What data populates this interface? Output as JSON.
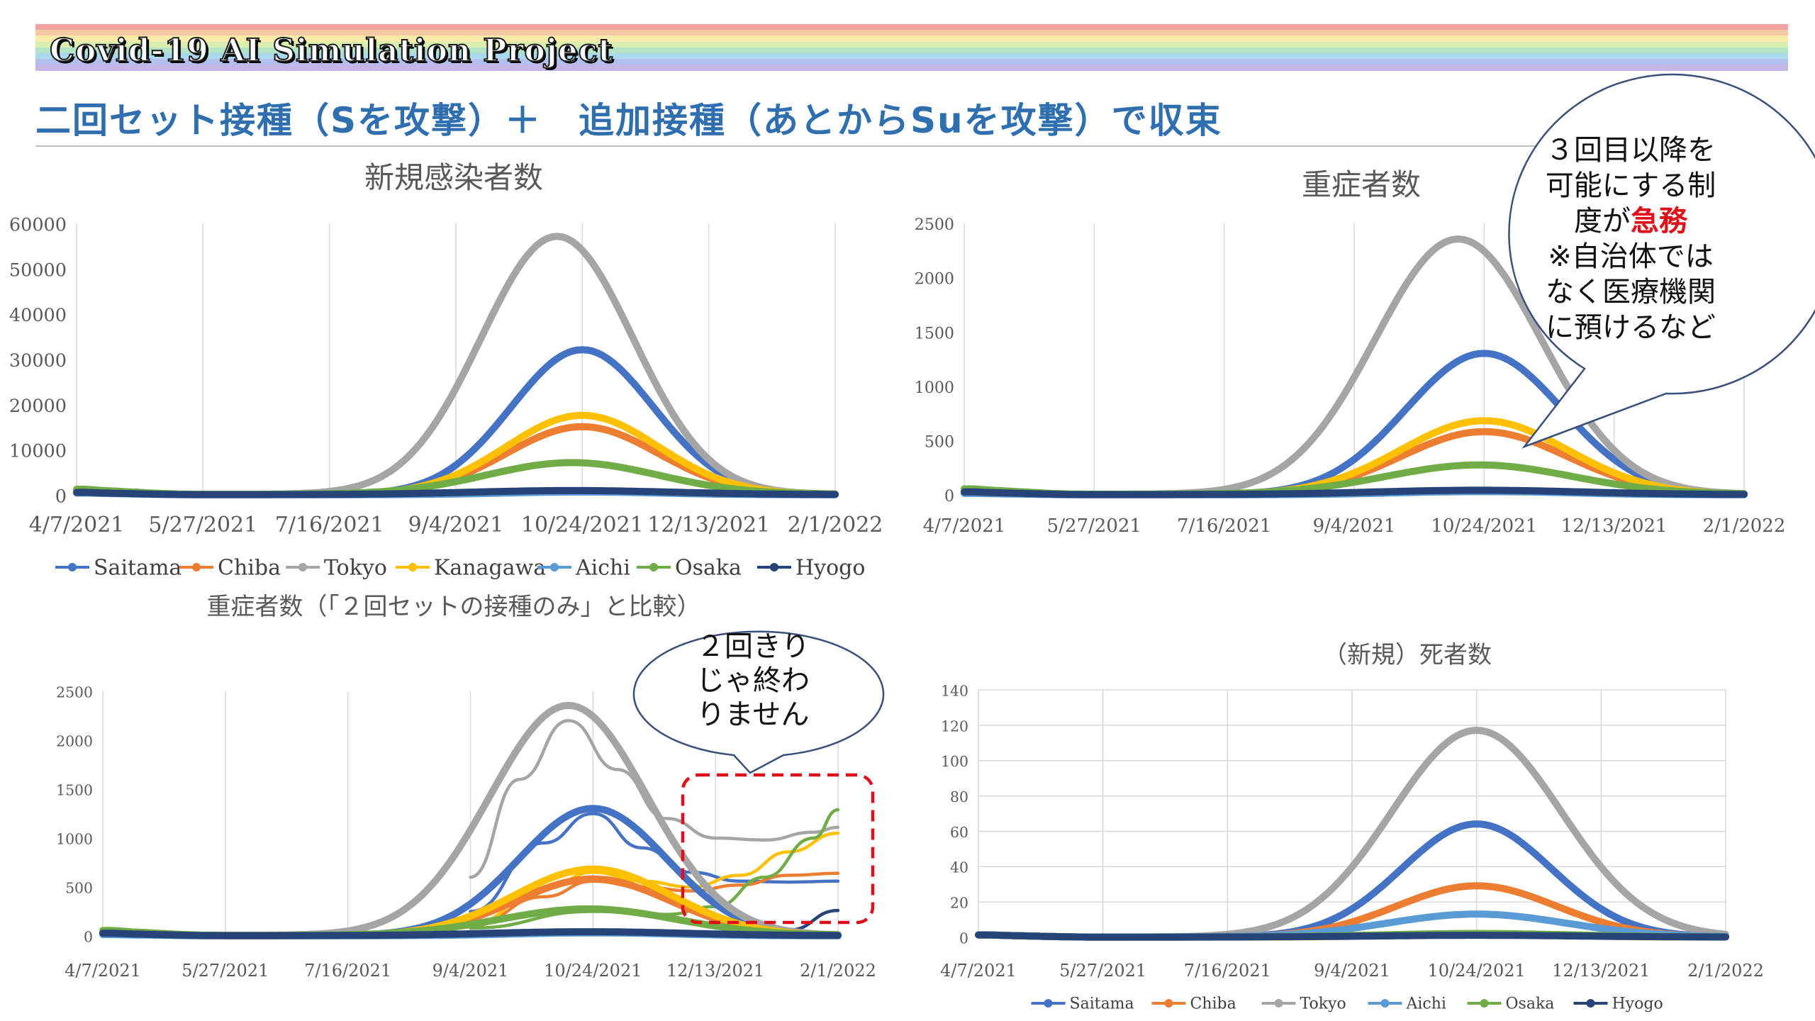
{
  "banner": {
    "title": "Covid-19 AI Simulation Project",
    "stripes": [
      "#f4a3a3",
      "#f6c9a6",
      "#f8eaa9",
      "#d9efb0",
      "#b5e3c7",
      "#a9d8ef",
      "#b3bfec",
      "#c4b6e6"
    ]
  },
  "subtitle": {
    "text": "二回セット接種（Sを攻撃）＋　追加接種（あとからSuを攻撃）で収束",
    "color": "#2f6fb0"
  },
  "colors": {
    "Saitama": "#4472c4",
    "Chiba": "#ed7d31",
    "Tokyo": "#a5a5a5",
    "Kanagawa": "#ffc000",
    "Aichi": "#5b9bd5",
    "Osaka": "#70ad47",
    "Hyogo": "#264478"
  },
  "callouts": {
    "booster": {
      "lines": [
        [
          {
            "text": "３回目以降を"
          }
        ],
        [
          {
            "text": "可能にする制"
          }
        ],
        [
          {
            "text": "度が"
          },
          {
            "text": "急務",
            "color": "#e0101a",
            "bold": true
          }
        ],
        [
          {
            "text": "※自治体では"
          }
        ],
        [
          {
            "text": "なく医療機関"
          }
        ],
        [
          {
            "text": "に預けるなど"
          }
        ]
      ]
    },
    "not_over": {
      "lines": [
        [
          {
            "text": "２回きり"
          }
        ],
        [
          {
            "text": "じゃ終わ"
          }
        ],
        [
          {
            "text": "りません"
          }
        ]
      ]
    }
  },
  "chart_data": [
    {
      "id": "infections",
      "type": "line",
      "title": "新規感染者数",
      "xlabel": "",
      "ylabel": "",
      "x_ticks": [
        "4/7/2021",
        "5/27/2021",
        "7/16/2021",
        "9/4/2021",
        "10/24/2021",
        "12/13/2021",
        "2/1/2022"
      ],
      "ylim": [
        0,
        60000
      ],
      "y_ticks": [
        0,
        10000,
        20000,
        30000,
        40000,
        50000,
        60000
      ],
      "grid": "vertical",
      "legend": "bottom",
      "legend_items": [
        "Saitama",
        "Chiba",
        "Tokyo",
        "Kanagawa",
        "Aichi",
        "Osaka",
        "Hyogo"
      ],
      "series": [
        {
          "name": "Saitama",
          "peak_date": "10/24/2021",
          "peak": 32000,
          "width_days": 28,
          "base": 600
        },
        {
          "name": "Chiba",
          "peak_date": "10/24/2021",
          "peak": 15000,
          "width_days": 30,
          "base": 500
        },
        {
          "name": "Tokyo",
          "peak_date": "10/14/2021",
          "peak": 57000,
          "width_days": 30,
          "base": 900
        },
        {
          "name": "Kanagawa",
          "peak_date": "10/24/2021",
          "peak": 17500,
          "width_days": 30,
          "base": 500
        },
        {
          "name": "Aichi",
          "peak_date": "10/24/2021",
          "peak": 600,
          "width_days": 30,
          "base": 300
        },
        {
          "name": "Osaka",
          "peak_date": "10/20/2021",
          "peak": 7000,
          "width_days": 34,
          "base": 900
        },
        {
          "name": "Hyogo",
          "peak_date": "10/20/2021",
          "peak": 900,
          "width_days": 40,
          "base": 400
        }
      ]
    },
    {
      "id": "severe",
      "type": "line",
      "title": "重症者数",
      "xlabel": "",
      "ylabel": "",
      "x_ticks": [
        "4/7/2021",
        "5/27/2021",
        "7/16/2021",
        "9/4/2021",
        "10/24/2021",
        "12/13/2021",
        "2/1/2022"
      ],
      "ylim": [
        0,
        2500
      ],
      "y_ticks": [
        0,
        500,
        1000,
        1500,
        2000,
        2500
      ],
      "grid": "vertical",
      "legend": "none",
      "series": [
        {
          "name": "Saitama",
          "peak_date": "10/24/2021",
          "peak": 1300,
          "width_days": 30,
          "base": 20
        },
        {
          "name": "Chiba",
          "peak_date": "10/24/2021",
          "peak": 580,
          "width_days": 32,
          "base": 15
        },
        {
          "name": "Tokyo",
          "peak_date": "10/14/2021",
          "peak": 2350,
          "width_days": 32,
          "base": 40
        },
        {
          "name": "Kanagawa",
          "peak_date": "10/24/2021",
          "peak": 680,
          "width_days": 32,
          "base": 20
        },
        {
          "name": "Aichi",
          "peak_date": "10/24/2021",
          "peak": 30,
          "width_days": 32,
          "base": 10
        },
        {
          "name": "Osaka",
          "peak_date": "10/22/2021",
          "peak": 270,
          "width_days": 36,
          "base": 40
        },
        {
          "name": "Hyogo",
          "peak_date": "10/22/2021",
          "peak": 40,
          "width_days": 40,
          "base": 20
        }
      ]
    },
    {
      "id": "severe_compare",
      "type": "line",
      "title": "重症者数（「２回セットの接種のみ」と比較）",
      "xlabel": "",
      "ylabel": "",
      "x_ticks": [
        "4/7/2021",
        "5/27/2021",
        "7/16/2021",
        "9/4/2021",
        "10/24/2021",
        "12/13/2021",
        "2/1/2022"
      ],
      "ylim": [
        0,
        2500
      ],
      "y_ticks": [
        0,
        500,
        1000,
        1500,
        2000,
        2500
      ],
      "grid": "vertical",
      "legend": "none",
      "series": [
        {
          "name": "Saitama",
          "peak_date": "10/24/2021",
          "peak": 1300,
          "width_days": 30,
          "base": 20
        },
        {
          "name": "Chiba",
          "peak_date": "10/24/2021",
          "peak": 580,
          "width_days": 32,
          "base": 15
        },
        {
          "name": "Tokyo",
          "peak_date": "10/14/2021",
          "peak": 2350,
          "width_days": 32,
          "base": 40
        },
        {
          "name": "Kanagawa",
          "peak_date": "10/24/2021",
          "peak": 680,
          "width_days": 32,
          "base": 20
        },
        {
          "name": "Aichi",
          "peak_date": "10/24/2021",
          "peak": 30,
          "width_days": 32,
          "base": 10
        },
        {
          "name": "Osaka",
          "peak_date": "10/22/2021",
          "peak": 270,
          "width_days": 36,
          "base": 40
        },
        {
          "name": "Hyogo",
          "peak_date": "10/22/2021",
          "peak": 40,
          "width_days": 40,
          "base": 20
        }
      ],
      "comparison_series": [
        {
          "name": "Saitama",
          "points": [
            [
              "9/4/2021",
              250
            ],
            [
              "10/4/2021",
              950
            ],
            [
              "10/24/2021",
              1250
            ],
            [
              "11/13/2021",
              900
            ],
            [
              "12/3/2021",
              650
            ],
            [
              "12/23/2021",
              560
            ],
            [
              "1/12/2022",
              550
            ],
            [
              "2/1/2022",
              560
            ]
          ]
        },
        {
          "name": "Chiba",
          "points": [
            [
              "9/4/2021",
              100
            ],
            [
              "10/4/2021",
              400
            ],
            [
              "10/24/2021",
              560
            ],
            [
              "11/13/2021",
              500
            ],
            [
              "12/3/2021",
              460
            ],
            [
              "12/23/2021",
              520
            ],
            [
              "1/12/2022",
              620
            ],
            [
              "2/1/2022",
              640
            ]
          ]
        },
        {
          "name": "Tokyo",
          "points": [
            [
              "9/4/2021",
              600
            ],
            [
              "9/24/2021",
              1600
            ],
            [
              "10/14/2021",
              2200
            ],
            [
              "11/3/2021",
              1700
            ],
            [
              "11/23/2021",
              1200
            ],
            [
              "12/13/2021",
              1000
            ],
            [
              "1/2/2022",
              980
            ],
            [
              "1/22/2022",
              1060
            ],
            [
              "2/1/2022",
              1110
            ]
          ]
        },
        {
          "name": "Kanagawa",
          "points": [
            [
              "9/4/2021",
              120
            ],
            [
              "10/4/2021",
              480
            ],
            [
              "10/24/2021",
              650
            ],
            [
              "11/13/2021",
              560
            ],
            [
              "12/3/2021",
              500
            ],
            [
              "12/23/2021",
              620
            ],
            [
              "1/12/2022",
              860
            ],
            [
              "2/1/2022",
              1050
            ]
          ]
        },
        {
          "name": "Osaka",
          "points": [
            [
              "9/4/2021",
              80
            ],
            [
              "10/24/2021",
              250
            ],
            [
              "11/23/2021",
              220
            ],
            [
              "12/13/2021",
              300
            ],
            [
              "1/2/2022",
              600
            ],
            [
              "1/22/2022",
              1000
            ],
            [
              "2/1/2022",
              1290
            ]
          ]
        },
        {
          "name": "Hyogo",
          "points": [
            [
              "9/4/2021",
              15
            ],
            [
              "10/24/2021",
              30
            ],
            [
              "12/13/2021",
              30
            ],
            [
              "1/12/2022",
              60
            ],
            [
              "2/1/2022",
              260
            ]
          ]
        }
      ]
    },
    {
      "id": "deaths",
      "type": "line",
      "title": "（新規）死者数",
      "xlabel": "",
      "ylabel": "",
      "x_ticks": [
        "4/7/2021",
        "5/27/2021",
        "7/16/2021",
        "9/4/2021",
        "10/24/2021",
        "12/13/2021",
        "2/1/2022"
      ],
      "ylim": [
        0,
        140
      ],
      "y_ticks": [
        0,
        20,
        40,
        60,
        80,
        100,
        120,
        140
      ],
      "grid": "both",
      "legend": "bottom",
      "legend_items": [
        "Saitama",
        "Chiba",
        "Tokyo",
        "Aichi",
        "Osaka",
        "Hyogo"
      ],
      "series": [
        {
          "name": "Saitama",
          "peak_date": "10/24/2021",
          "peak": 64,
          "width_days": 30,
          "base": 1
        },
        {
          "name": "Chiba",
          "peak_date": "10/24/2021",
          "peak": 29,
          "width_days": 32,
          "base": 1
        },
        {
          "name": "Tokyo",
          "peak_date": "10/24/2021",
          "peak": 117,
          "width_days": 34,
          "base": 1
        },
        {
          "name": "Kanagawa",
          "peak_date": "10/24/2021",
          "peak": 2,
          "width_days": 30,
          "base": 1
        },
        {
          "name": "Aichi",
          "peak_date": "10/24/2021",
          "peak": 13,
          "width_days": 36,
          "base": 1
        },
        {
          "name": "Osaka",
          "peak_date": "10/24/2021",
          "peak": 2,
          "width_days": 40,
          "base": 1
        },
        {
          "name": "Hyogo",
          "peak_date": "10/24/2021",
          "peak": 1,
          "width_days": 40,
          "base": 1
        }
      ]
    }
  ]
}
